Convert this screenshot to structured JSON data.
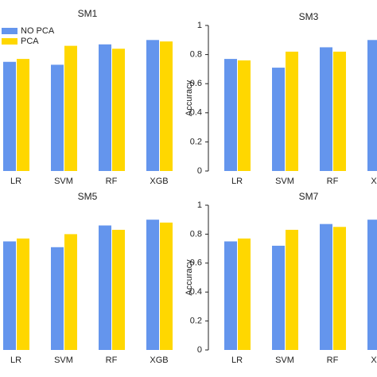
{
  "chart_data": [
    {
      "type": "bar",
      "title": "SM1",
      "categories": [
        "LR",
        "SVM",
        "RF",
        "XGB"
      ],
      "series": [
        {
          "name": "NO PCA",
          "color": "#6495ed",
          "values": [
            0.75,
            0.73,
            0.87,
            0.9
          ]
        },
        {
          "name": "PCA",
          "color": "#ffd700",
          "values": [
            0.77,
            0.86,
            0.84,
            0.89
          ]
        }
      ],
      "ylim": [
        0,
        1
      ],
      "legend": "upper left"
    },
    {
      "type": "bar",
      "title": "SM3",
      "categories": [
        "LR",
        "SVM",
        "RF",
        "XGB"
      ],
      "ylabel": "Accuracy",
      "series": [
        {
          "name": "NO PCA",
          "color": "#6495ed",
          "values": [
            0.77,
            0.71,
            0.85,
            0.9
          ]
        },
        {
          "name": "PCA",
          "color": "#ffd700",
          "values": [
            0.76,
            0.82,
            0.82,
            null
          ]
        }
      ],
      "ylim": [
        0,
        1
      ],
      "yticks": [
        0,
        0.2,
        0.4,
        0.6,
        0.8,
        1
      ]
    },
    {
      "type": "bar",
      "title": "SM5",
      "categories": [
        "LR",
        "SVM",
        "RF",
        "XGB"
      ],
      "series": [
        {
          "name": "NO PCA",
          "color": "#6495ed",
          "values": [
            0.75,
            0.71,
            0.86,
            0.9
          ]
        },
        {
          "name": "PCA",
          "color": "#ffd700",
          "values": [
            0.77,
            0.8,
            0.83,
            0.88
          ]
        }
      ],
      "ylim": [
        0,
        1
      ]
    },
    {
      "type": "bar",
      "title": "SM7",
      "categories": [
        "LR",
        "SVM",
        "RF",
        "XGB"
      ],
      "ylabel": "Accuracy",
      "series": [
        {
          "name": "NO PCA",
          "color": "#6495ed",
          "values": [
            0.75,
            0.72,
            0.87,
            0.9
          ]
        },
        {
          "name": "PCA",
          "color": "#ffd700",
          "values": [
            0.77,
            0.83,
            0.85,
            null
          ]
        }
      ],
      "ylim": [
        0,
        1
      ],
      "yticks": [
        0,
        0.2,
        0.4,
        0.6,
        0.8,
        1
      ]
    }
  ]
}
